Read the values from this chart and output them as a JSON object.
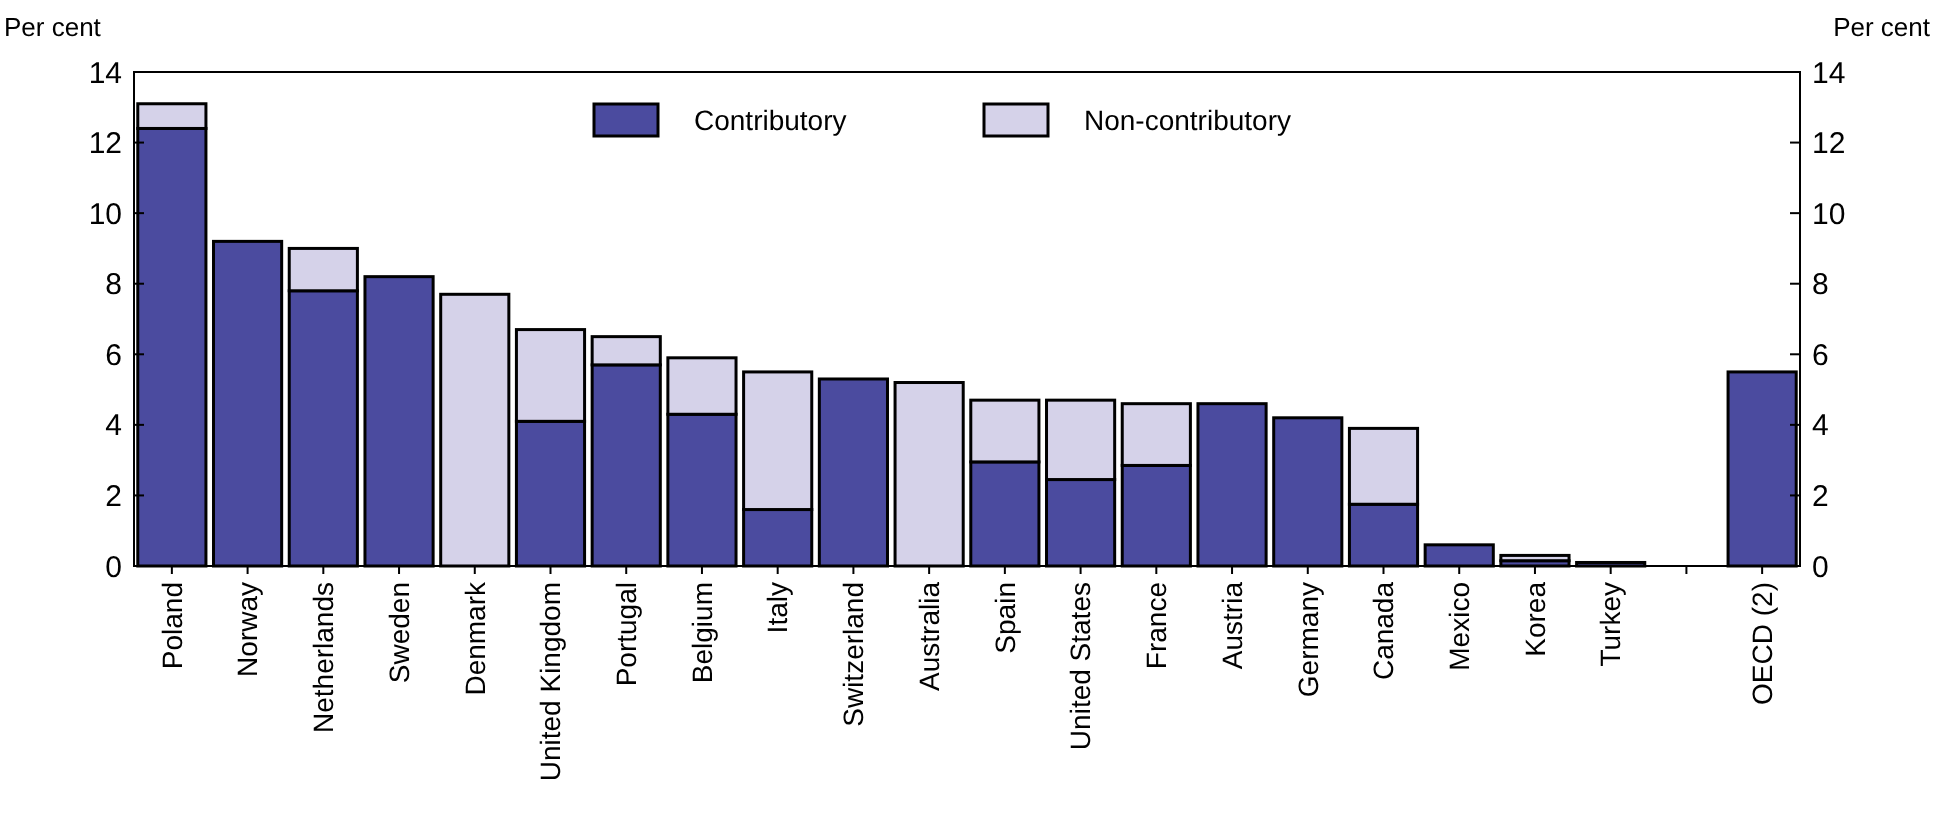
{
  "chart_data": {
    "type": "bar",
    "stacked": true,
    "ylabel": "Per cent",
    "y2label": "Per cent",
    "categories": [
      "Poland",
      "Norway",
      "Netherlands",
      "Sweden",
      "Denmark",
      "United Kingdom",
      "Portugal",
      "Belgium",
      "Italy",
      "Switzerland",
      "Australia",
      "Spain",
      "United States",
      "France",
      "Austria",
      "Germany",
      "Canada",
      "Mexico",
      "Korea",
      "Turkey",
      null,
      "OECD (2)"
    ],
    "series": [
      {
        "name": "Contributory",
        "color": "#4b4b9f",
        "values": [
          12.4,
          9.2,
          7.8,
          8.2,
          0,
          4.1,
          5.7,
          4.3,
          1.6,
          5.3,
          0,
          2.95,
          2.45,
          2.85,
          4.6,
          4.2,
          1.75,
          0.6,
          0.15,
          0.1,
          null,
          5.5
        ]
      },
      {
        "name": "Non-contributory",
        "color": "#d5d2e9",
        "values": [
          0.7,
          0,
          1.2,
          0,
          7.7,
          2.6,
          0.8,
          1.6,
          3.9,
          0,
          5.2,
          1.75,
          2.25,
          1.75,
          0,
          0,
          2.15,
          0,
          0.15,
          0,
          null,
          0
        ]
      }
    ],
    "ylim": [
      0,
      14
    ],
    "yticks": [
      0,
      2,
      4,
      6,
      8,
      10,
      12,
      14
    ],
    "y2lim": [
      0,
      14
    ],
    "y2ticks": [
      0,
      2,
      4,
      6,
      8,
      10,
      12,
      14
    ],
    "grid": false,
    "legend": "top"
  }
}
